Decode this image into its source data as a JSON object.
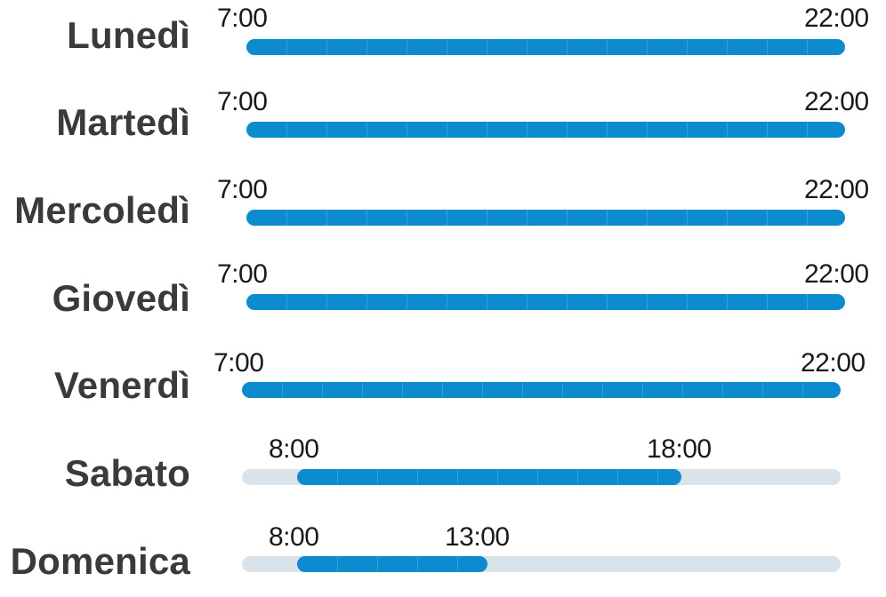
{
  "schedule": {
    "colors": {
      "bar": "#0c8ccf",
      "track": "#dbe3ea",
      "label": "#3a3a3c"
    },
    "days": [
      {
        "day": "Lunedì",
        "open": "7:00",
        "close": "22:00"
      },
      {
        "day": "Martedì",
        "open": "7:00",
        "close": "22:00"
      },
      {
        "day": "Mercoledì",
        "open": "7:00",
        "close": "22:00"
      },
      {
        "day": "Giovedì",
        "open": "7:00",
        "close": "22:00"
      },
      {
        "day": "Venerdì",
        "open": "7:00",
        "close": "22:00"
      },
      {
        "day": "Sabato",
        "open": "8:00",
        "close": "18:00"
      },
      {
        "day": "Domenica",
        "open": "8:00",
        "close": "13:00"
      }
    ]
  }
}
